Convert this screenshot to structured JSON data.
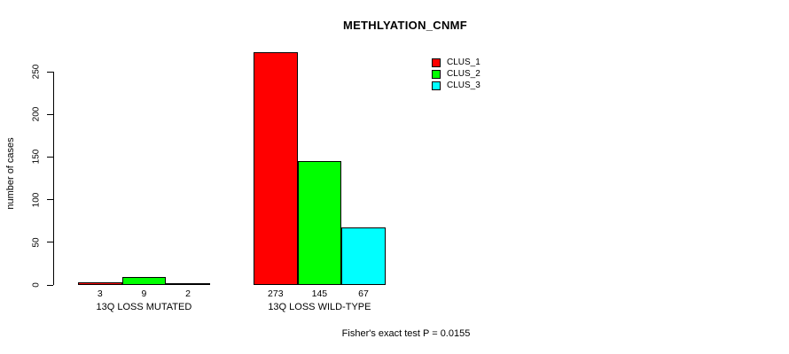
{
  "title": "METHLYATION_CNMF",
  "y_axis": {
    "label": "number of cases",
    "ticks": [
      "0",
      "50",
      "100",
      "150",
      "200",
      "250"
    ]
  },
  "footer": "Fisher's exact test P = 0.0155",
  "legend": {
    "items": [
      {
        "label": "CLUS_1",
        "color": "#ff0000"
      },
      {
        "label": "CLUS_2",
        "color": "#00ff00"
      },
      {
        "label": "CLUS_3",
        "color": "#00ffff"
      }
    ]
  },
  "chart_data": {
    "type": "bar",
    "title": "METHLYATION_CNMF",
    "xlabel": "",
    "ylabel": "number of cases",
    "categories": [
      "13Q LOSS MUTATED",
      "13Q LOSS WILD-TYPE"
    ],
    "series": [
      {
        "name": "CLUS_1",
        "color": "#ff0000",
        "values": [
          3,
          273
        ]
      },
      {
        "name": "CLUS_2",
        "color": "#00ff00",
        "values": [
          9,
          145
        ]
      },
      {
        "name": "CLUS_3",
        "color": "#00ffff",
        "values": [
          2,
          67
        ]
      }
    ],
    "value_labels": [
      [
        "3",
        "9",
        "2"
      ],
      [
        "273",
        "145",
        "67"
      ]
    ],
    "yticks": [
      0,
      50,
      100,
      150,
      200,
      250
    ],
    "ylim": [
      0,
      283
    ],
    "grid": false,
    "bar_border_color": "#000000",
    "legend_position": "inside-top-right",
    "annotation": "Fisher's exact test P = 0.0155"
  }
}
